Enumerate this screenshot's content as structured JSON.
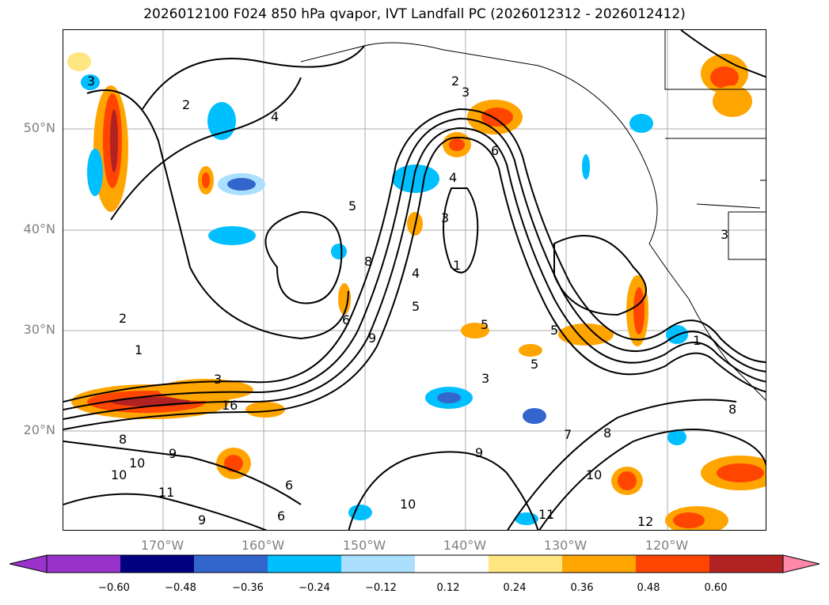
{
  "title": "2026012100 F024 850 hPa qvapor, IVT Landfall PC (2026012312 - 2026012412)",
  "lat_labels": [
    "50°N",
    "40°N",
    "30°N",
    "20°N"
  ],
  "lon_labels": [
    "170°W",
    "160°W",
    "150°W",
    "140°W",
    "130°W",
    "120°W"
  ],
  "colorbar": {
    "ticks": [
      "−0.60",
      "−0.48",
      "−0.36",
      "−0.24",
      "−0.12",
      "0.12",
      "0.24",
      "0.36",
      "0.48",
      "0.60"
    ],
    "colors": [
      "#9933cc",
      "#000080",
      "#3366cc",
      "#00bfff",
      "#aadfff",
      "#ffffff",
      "#ffe680",
      "#ffa500",
      "#ff4500",
      "#b22222",
      "#ff88aa"
    ]
  },
  "contour_labels": [
    "1",
    "2",
    "3",
    "4",
    "5",
    "6",
    "7",
    "8",
    "9",
    "10",
    "11",
    "12",
    "16"
  ],
  "fill_colors": {
    "orange": "#ffa500",
    "red": "#ff4500",
    "darkred": "#b22222",
    "yellow": "#ffe680",
    "blue": "#00bfff",
    "lightblue": "#aadfff",
    "royal": "#3366cc"
  }
}
